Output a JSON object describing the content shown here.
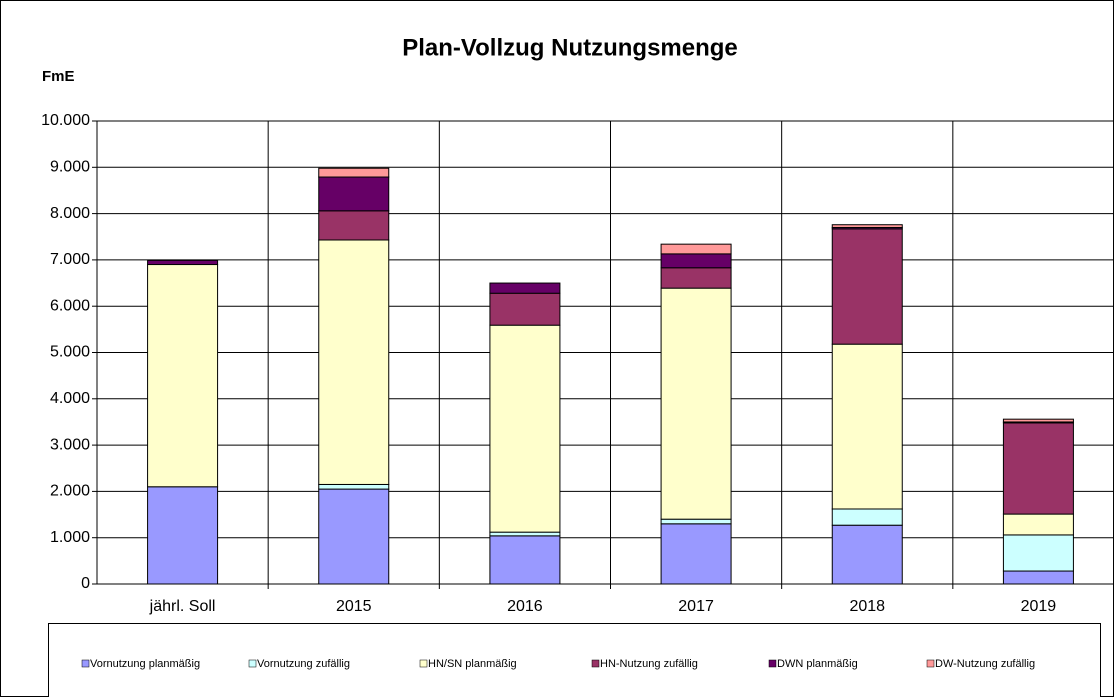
{
  "chart_data": {
    "type": "stacked_bar",
    "title": "Plan-Vollzug Nutzungsmenge",
    "y_label": "FmE",
    "categories": [
      "jährl. Soll",
      "2015",
      "2016",
      "2017",
      "2018",
      "2019"
    ],
    "series": [
      {
        "name": "Vornutzung planmäßig",
        "color": "#9999ff",
        "values": [
          2100,
          2050,
          1040,
          1300,
          1270,
          280
        ]
      },
      {
        "name": "Vornutzung zufällig",
        "color": "#ccffff",
        "values": [
          0,
          100,
          80,
          100,
          350,
          780
        ]
      },
      {
        "name": "HN/SN planmäßig",
        "color": "#ffffcc",
        "values": [
          4800,
          5280,
          4470,
          4990,
          3560,
          450
        ]
      },
      {
        "name": "HN-Nutzung zufällig",
        "color": "#993366",
        "values": [
          0,
          630,
          690,
          440,
          2490,
          1970
        ]
      },
      {
        "name": "DWN planmäßig",
        "color": "#660066",
        "values": [
          90,
          730,
          220,
          300,
          30,
          20
        ]
      },
      {
        "name": "DW-Nutzung zufällig",
        "color": "#ff9999",
        "values": [
          0,
          190,
          0,
          210,
          60,
          60
        ]
      }
    ],
    "ylim": [
      0,
      10000
    ],
    "yticks": [
      0,
      {
        "value": 1000,
        "label": "1.000"
      },
      {
        "value": 2000,
        "label": "2.000"
      },
      {
        "value": 3000,
        "label": "3.000"
      },
      {
        "value": 4000,
        "label": "4.000"
      },
      {
        "value": 5000,
        "label": "5.000"
      },
      {
        "value": 6000,
        "label": "6.000"
      },
      {
        "value": 7000,
        "label": "7.000"
      },
      {
        "value": 8000,
        "label": "8.000"
      },
      {
        "value": 9000,
        "label": "9.000"
      },
      {
        "value": 10000,
        "label": "10.000"
      }
    ],
    "grid": true,
    "legend": "bottom"
  }
}
